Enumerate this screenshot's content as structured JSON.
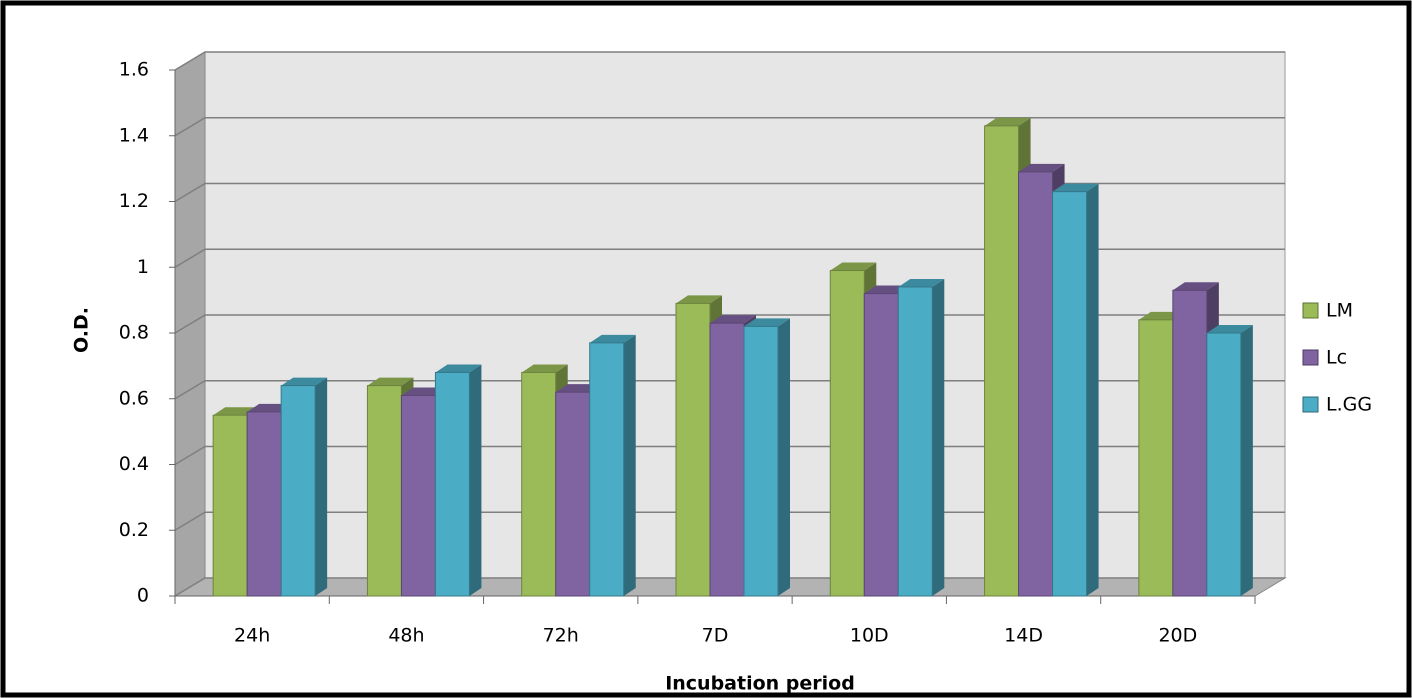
{
  "chart_data": {
    "type": "bar3d",
    "x_label": "Incubation period",
    "y_label": "O.D.",
    "categories": [
      "24h",
      "48h",
      "72h",
      "7D",
      "10D",
      "14D",
      "20D"
    ],
    "series": [
      {
        "name": "LM",
        "color": "#9bbb59",
        "values": [
          0.55,
          0.64,
          0.68,
          0.89,
          0.99,
          1.43,
          0.84
        ]
      },
      {
        "name": "Lc",
        "color": "#8064a2",
        "values": [
          0.56,
          0.61,
          0.62,
          0.83,
          0.92,
          1.29,
          0.93
        ]
      },
      {
        "name": "L.GG",
        "color": "#4bacc6",
        "values": [
          0.64,
          0.68,
          0.77,
          0.82,
          0.94,
          1.23,
          0.8
        ]
      }
    ],
    "ylim": [
      0,
      1.6
    ],
    "yticks": [
      0,
      0.2,
      0.4,
      0.6,
      0.8,
      1,
      1.2,
      1.4,
      1.6
    ],
    "grid": true,
    "legend": "right"
  }
}
